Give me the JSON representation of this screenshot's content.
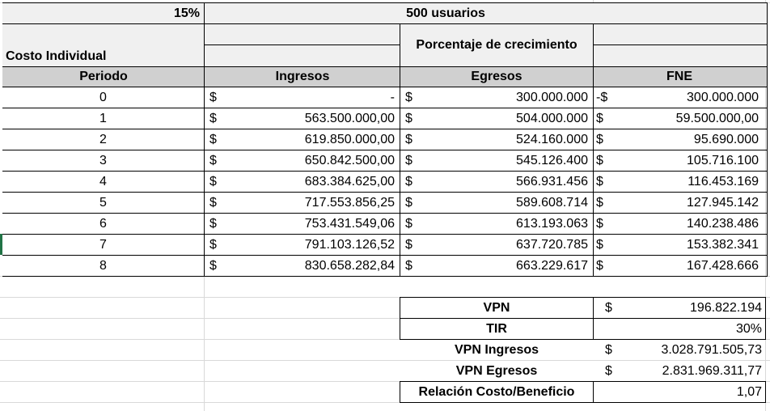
{
  "top": {
    "rate": "15%",
    "users": "500 usuarios"
  },
  "growth_label": "Porcentaje de crecimiento",
  "cost_label": "Costo Individual",
  "headers": {
    "periodo": "Periodo",
    "ingresos": "Ingresos",
    "egresos": "Egresos",
    "fne": "FNE"
  },
  "currency": "$",
  "rows": [
    {
      "periodo": "0",
      "ingresos": "-",
      "egresos": "300.000.000",
      "fne_prefix": "-$",
      "fne": "300.000.000"
    },
    {
      "periodo": "1",
      "ingresos": "563.500.000,00",
      "egresos": "504.000.000",
      "fne_prefix": "$",
      "fne": "59.500.000,00"
    },
    {
      "periodo": "2",
      "ingresos": "619.850.000,00",
      "egresos": "524.160.000",
      "fne_prefix": "$",
      "fne": "95.690.000"
    },
    {
      "periodo": "3",
      "ingresos": "650.842.500,00",
      "egresos": "545.126.400",
      "fne_prefix": "$",
      "fne": "105.716.100"
    },
    {
      "periodo": "4",
      "ingresos": "683.384.625,00",
      "egresos": "566.931.456",
      "fne_prefix": "$",
      "fne": "116.453.169"
    },
    {
      "periodo": "5",
      "ingresos": "717.553.856,25",
      "egresos": "589.608.714",
      "fne_prefix": "$",
      "fne": "127.945.142"
    },
    {
      "periodo": "6",
      "ingresos": "753.431.549,06",
      "egresos": "613.193.063",
      "fne_prefix": "$",
      "fne": "140.238.486"
    },
    {
      "periodo": "7",
      "ingresos": "791.103.126,52",
      "egresos": "637.720.785",
      "fne_prefix": "$",
      "fne": "153.382.341"
    },
    {
      "periodo": "8",
      "ingresos": "830.658.282,84",
      "egresos": "663.229.617",
      "fne_prefix": "$",
      "fne": "167.428.666"
    }
  ],
  "summary": [
    {
      "label": "VPN",
      "prefix": "$",
      "value": "196.822.194"
    },
    {
      "label": "TIR",
      "prefix": "",
      "value": "30%"
    },
    {
      "label": "VPN Ingresos",
      "prefix": "$",
      "value": "3.028.791.505,73"
    },
    {
      "label": "VPN Egresos",
      "prefix": "$",
      "value": "2.831.969.311,77"
    },
    {
      "label": "Relación Costo/Beneficio",
      "prefix": "",
      "value": "1,07"
    }
  ]
}
